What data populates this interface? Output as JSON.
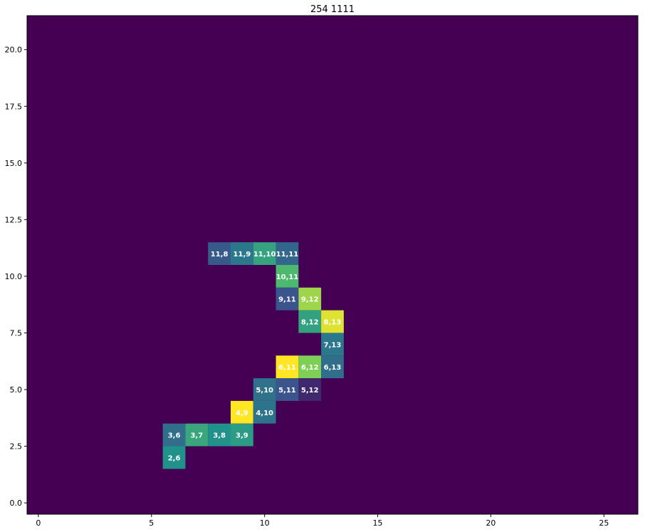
{
  "chart_data": {
    "type": "heatmap",
    "title": "254 1111",
    "xlabel": "",
    "ylabel": "",
    "xlim": [
      -0.5,
      26.5
    ],
    "ylim": [
      -0.5,
      21.5
    ],
    "x_ticks": [
      0,
      5,
      10,
      15,
      20,
      25
    ],
    "x_tick_labels": [
      "0",
      "5",
      "10",
      "15",
      "20",
      "25"
    ],
    "y_ticks": [
      0.0,
      2.5,
      5.0,
      7.5,
      10.0,
      12.5,
      15.0,
      17.5,
      20.0
    ],
    "y_tick_labels": [
      "0.0",
      "2.5",
      "5.0",
      "7.5",
      "10.0",
      "12.5",
      "15.0",
      "17.5",
      "20.0"
    ],
    "grid": false,
    "background_color": "#440154",
    "colormap": "viridis",
    "value_range": [
      0,
      1
    ],
    "cells": [
      {
        "x": 8,
        "y": 11,
        "label": "11,8",
        "value": 0.28
      },
      {
        "x": 9,
        "y": 11,
        "label": "11,9",
        "value": 0.4
      },
      {
        "x": 10,
        "y": 11,
        "label": "11,10",
        "value": 0.58
      },
      {
        "x": 11,
        "y": 11,
        "label": "11,11",
        "value": 0.33
      },
      {
        "x": 11,
        "y": 10,
        "label": "10,11",
        "value": 0.68
      },
      {
        "x": 11,
        "y": 9,
        "label": "9,11",
        "value": 0.26
      },
      {
        "x": 12,
        "y": 9,
        "label": "9,12",
        "value": 0.85
      },
      {
        "x": 12,
        "y": 8,
        "label": "8,12",
        "value": 0.57
      },
      {
        "x": 13,
        "y": 8,
        "label": "8,13",
        "value": 0.95
      },
      {
        "x": 13,
        "y": 7,
        "label": "7,13",
        "value": 0.4
      },
      {
        "x": 11,
        "y": 6,
        "label": "6,11",
        "value": 1.0
      },
      {
        "x": 12,
        "y": 6,
        "label": "6,12",
        "value": 0.8
      },
      {
        "x": 13,
        "y": 6,
        "label": "6,13",
        "value": 0.36
      },
      {
        "x": 10,
        "y": 5,
        "label": "5,10",
        "value": 0.37
      },
      {
        "x": 11,
        "y": 5,
        "label": "5,11",
        "value": 0.26
      },
      {
        "x": 12,
        "y": 5,
        "label": "5,12",
        "value": 0.12
      },
      {
        "x": 9,
        "y": 4,
        "label": "4,9",
        "value": 1.0
      },
      {
        "x": 10,
        "y": 4,
        "label": "4,10",
        "value": 0.38
      },
      {
        "x": 6,
        "y": 3,
        "label": "3,6",
        "value": 0.36
      },
      {
        "x": 7,
        "y": 3,
        "label": "3,7",
        "value": 0.6
      },
      {
        "x": 8,
        "y": 3,
        "label": "3,8",
        "value": 0.5
      },
      {
        "x": 9,
        "y": 3,
        "label": "3,9",
        "value": 0.55
      },
      {
        "x": 6,
        "y": 2,
        "label": "2,6",
        "value": 0.5
      }
    ]
  }
}
